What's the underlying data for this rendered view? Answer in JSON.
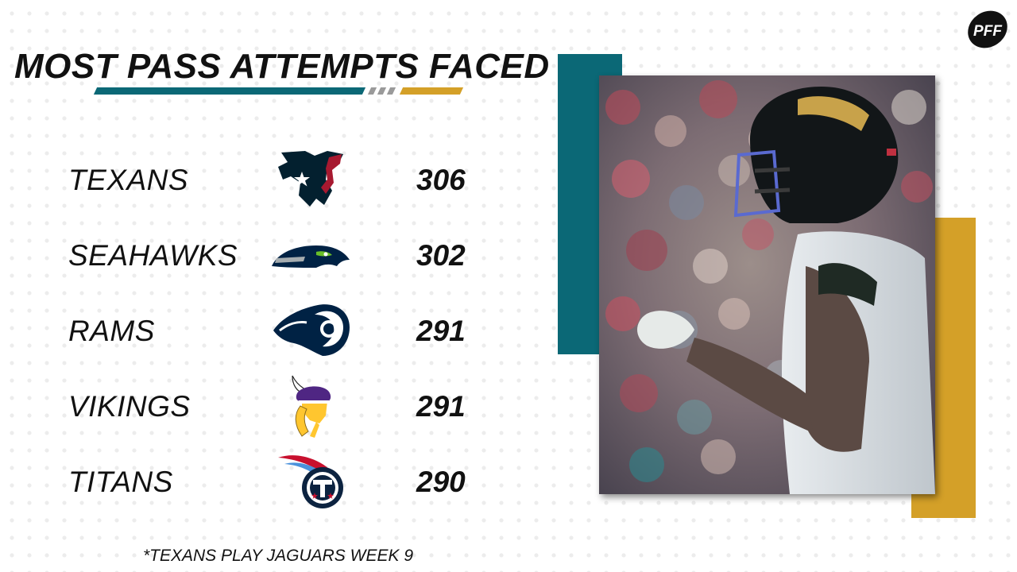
{
  "header": {
    "title": "MOST PASS ATTEMPTS FACED",
    "brand": "PFF"
  },
  "teams": [
    {
      "name": "TEXANS",
      "value": "306",
      "logo_icon": "texans-logo-icon"
    },
    {
      "name": "SEAHAWKS",
      "value": "302",
      "logo_icon": "seahawks-logo-icon"
    },
    {
      "name": "RAMS",
      "value": "291",
      "logo_icon": "rams-logo-icon"
    },
    {
      "name": "VIKINGS",
      "value": "291",
      "logo_icon": "vikings-logo-icon"
    },
    {
      "name": "TITANS",
      "value": "290",
      "logo_icon": "titans-logo-icon"
    }
  ],
  "footnote": "*TEXANS PLAY JAGUARS WEEK 9",
  "colors": {
    "teal": "#0b6876",
    "gold": "#d4a028",
    "gray": "#9a9a9a",
    "text": "#111111"
  }
}
